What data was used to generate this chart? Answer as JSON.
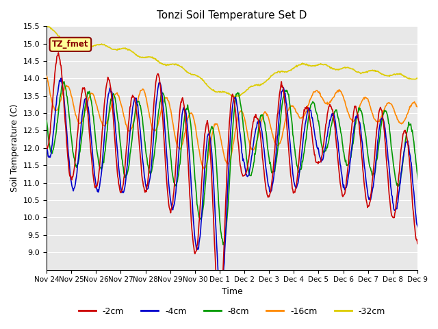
{
  "title": "Tonzi Soil Temperature Set D",
  "xlabel": "Time",
  "ylabel": "Soil Temperature (C)",
  "ylim": [
    8.5,
    15.5
  ],
  "yticks": [
    9.0,
    9.5,
    10.0,
    10.5,
    11.0,
    11.5,
    12.0,
    12.5,
    13.0,
    13.5,
    14.0,
    14.5,
    15.0,
    15.5
  ],
  "line_colors": {
    "-2cm": "#cc0000",
    "-4cm": "#0000cc",
    "-8cm": "#009900",
    "-16cm": "#ff8800",
    "-32cm": "#ddcc00"
  },
  "xtick_labels": [
    "Nov 24",
    "Nov 25",
    "Nov 26",
    "Nov 27",
    "Nov 28",
    "Nov 29",
    "Nov 30",
    "Dec 1",
    "Dec 2",
    "Dec 3",
    "Dec 4",
    "Dec 5",
    "Dec 6",
    "Dec 7",
    "Dec 8",
    "Dec 9"
  ],
  "annotation_text": "TZ_fmet",
  "annotation_bg": "#ffff99",
  "annotation_border": "#880000",
  "plot_bg": "#e8e8e8",
  "fig_bg": "#ffffff",
  "grid_color": "#ffffff"
}
